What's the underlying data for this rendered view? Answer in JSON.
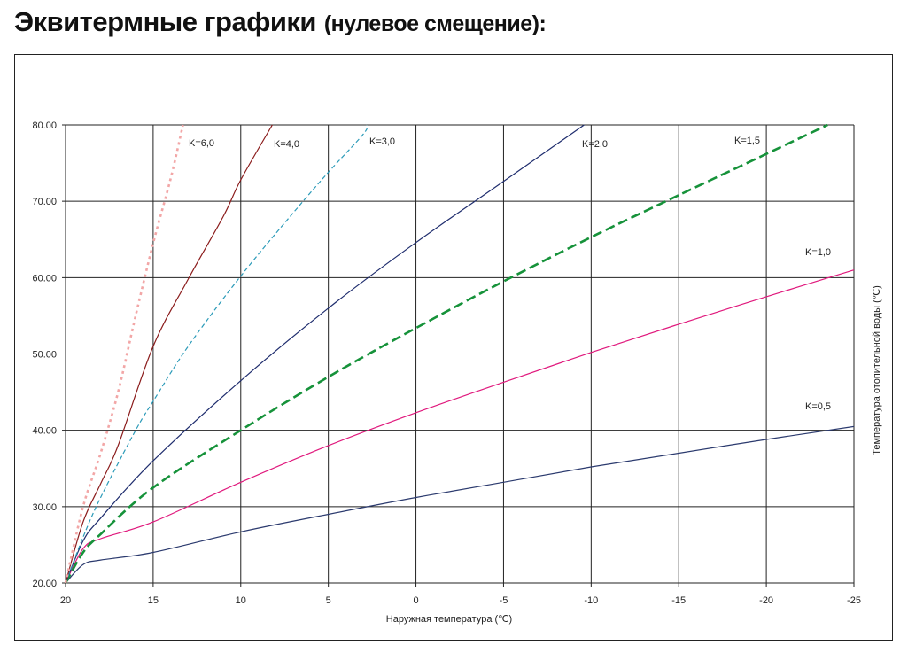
{
  "header": {
    "title": "Эквитермные графики",
    "subtitle": "(нулевое смещение):"
  },
  "chart_data": {
    "type": "line",
    "xlabel": "Наружная температура (℃)",
    "ylabel": "Температура отопительной воды (℃)",
    "xlim": [
      20,
      -25
    ],
    "ylim": [
      20,
      80
    ],
    "x_ticks": [
      "20",
      "15",
      "10",
      "5",
      "0",
      "-5",
      "-10",
      "-15",
      "-20",
      "-25"
    ],
    "y_ticks": [
      "20.00",
      "30.00",
      "40.00",
      "50.00",
      "60.00",
      "70.00",
      "80.00"
    ],
    "grid": true,
    "series": [
      {
        "name": "K=0,5",
        "color": "#2b3a6e",
        "style": "solid",
        "x": [
          20,
          19,
          18,
          15,
          10,
          5,
          0,
          -5,
          -10,
          -15,
          -20,
          -25
        ],
        "y": [
          20.0,
          22.4,
          23.0,
          24.0,
          26.7,
          29.0,
          31.2,
          33.2,
          35.2,
          37.0,
          38.8,
          40.5
        ]
      },
      {
        "name": "K=1,0",
        "color": "#e0197d",
        "style": "solid",
        "x": [
          20,
          19,
          18,
          15,
          10,
          5,
          0,
          -5,
          -10,
          -15,
          -20,
          -25
        ],
        "y": [
          20.0,
          24.5,
          25.8,
          28.0,
          33.2,
          38.0,
          42.3,
          46.3,
          50.2,
          53.9,
          57.5,
          61.0
        ]
      },
      {
        "name": "K=1,5",
        "color": "#16923a",
        "style": "dashed",
        "x": [
          20,
          19,
          18,
          15,
          10,
          5,
          0,
          -5,
          -10,
          -15,
          -20,
          -23.5
        ],
        "y": [
          20.0,
          24.0,
          26.4,
          32.5,
          40.0,
          47.0,
          53.4,
          59.5,
          65.3,
          70.8,
          76.2,
          80.0
        ]
      },
      {
        "name": "K=2,0",
        "color": "#1f2d6e",
        "style": "solid",
        "x": [
          20,
          19,
          18,
          15,
          10,
          5,
          0,
          -5,
          -9.6
        ],
        "y": [
          20.0,
          25.5,
          28.5,
          36.0,
          46.5,
          56.0,
          64.6,
          72.6,
          80.0
        ]
      },
      {
        "name": "K=3,0",
        "color": "#2a9ab8",
        "style": "dashed-thin",
        "x": [
          20,
          19,
          18,
          16,
          15,
          13,
          10,
          7,
          5,
          3,
          2.8
        ],
        "y": [
          20.0,
          26.0,
          31.2,
          40.0,
          43.8,
          51.0,
          60.2,
          68.5,
          73.8,
          78.8,
          80.0
        ]
      },
      {
        "name": "K=4,0",
        "color": "#8b1c1c",
        "style": "solid",
        "x": [
          20,
          19,
          18,
          17,
          15,
          13,
          11,
          10,
          8.2
        ],
        "y": [
          20.0,
          28.0,
          33.0,
          38.0,
          51.0,
          59.8,
          68.0,
          72.8,
          80.0
        ]
      },
      {
        "name": "K=6,0",
        "color": "#f2a6a6",
        "style": "dotted",
        "x": [
          20,
          19,
          18,
          17,
          16,
          15,
          14,
          13.3
        ],
        "y": [
          20.0,
          30.0,
          37.0,
          45.0,
          55.0,
          64.5,
          73.0,
          80.0
        ]
      }
    ]
  }
}
